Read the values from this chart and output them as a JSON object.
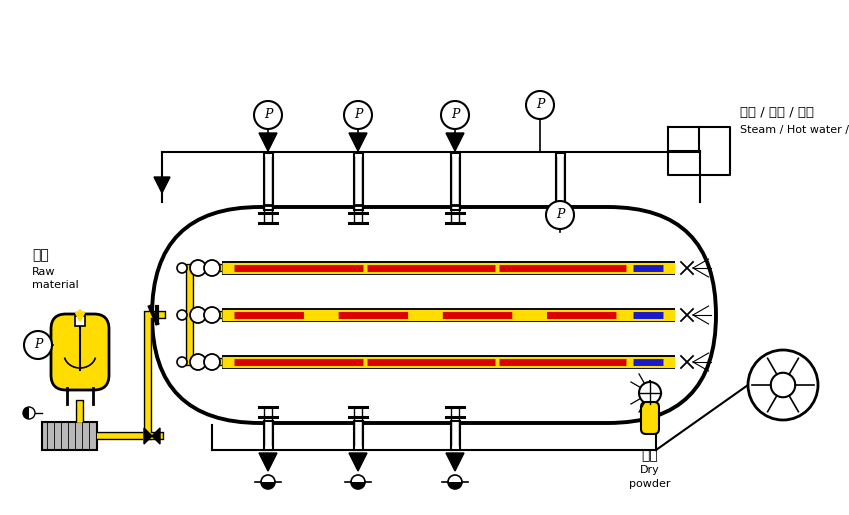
{
  "bg_color": "#ffffff",
  "black": "#000000",
  "red": "#dd0000",
  "blue": "#1a1acc",
  "yellow": "#ffdd00",
  "gray": "#b8b8b8",
  "label_steam_cn": "蒸汽 / 热水 / 热油",
  "label_steam_en": "Steam / Hot water / Hot oil",
  "label_raw_cn": "原料",
  "label_raw_en1": "Raw",
  "label_raw_en2": "material",
  "label_dry_cn": "干粉",
  "label_dry_en1": "Dry",
  "label_dry_en2": "powder"
}
